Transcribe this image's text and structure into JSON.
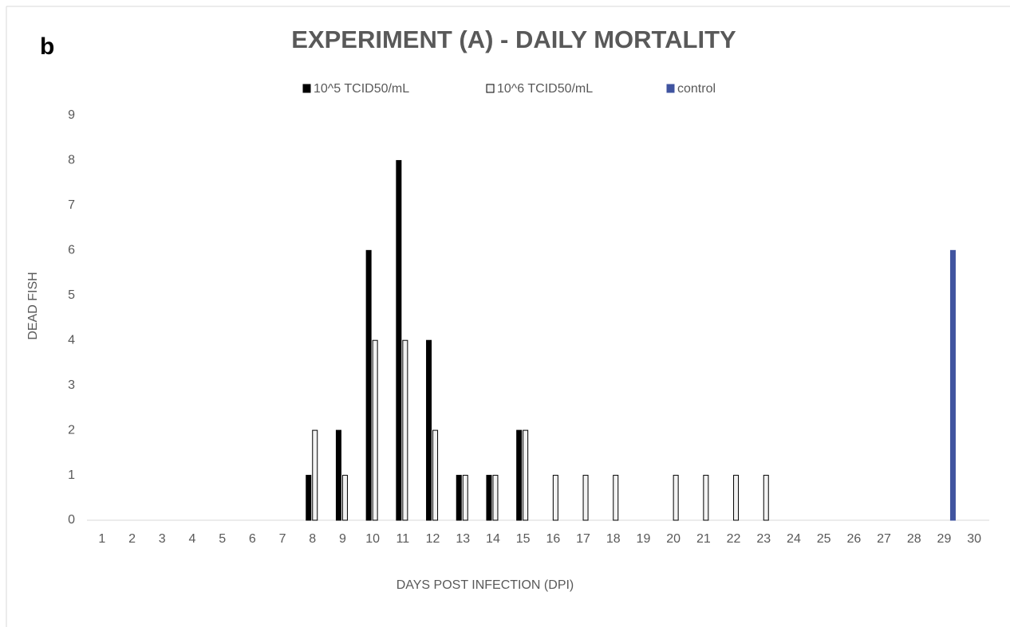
{
  "chart_data": {
    "type": "bar",
    "panel_label": "b",
    "title": "EXPERIMENT (A) - DAILY MORTALITY",
    "x_label": "DAYS POST INFECTION (DPI)",
    "y_label": "DEAD FISH",
    "categories": [
      "1",
      "2",
      "3",
      "4",
      "5",
      "6",
      "7",
      "8",
      "9",
      "10",
      "11",
      "12",
      "13",
      "14",
      "15",
      "16",
      "17",
      "18",
      "19",
      "20",
      "21",
      "22",
      "23",
      "24",
      "25",
      "26",
      "27",
      "28",
      "29",
      "30"
    ],
    "series": [
      {
        "name": "10^5 TCID50/mL",
        "color": "#000000",
        "edgecolor": "#000000",
        "values": [
          0,
          0,
          0,
          0,
          0,
          0,
          0,
          1,
          2,
          6,
          8,
          4,
          1,
          1,
          2,
          0,
          0,
          0,
          0,
          0,
          0,
          0,
          0,
          0,
          0,
          0,
          0,
          0,
          0,
          0
        ]
      },
      {
        "name": "10^6 TCID50/mL",
        "color": "#f2f2f2",
        "edgecolor": "#000000",
        "values": [
          0,
          0,
          0,
          0,
          0,
          0,
          0,
          2,
          1,
          4,
          4,
          2,
          1,
          1,
          2,
          1,
          1,
          1,
          0,
          1,
          1,
          1,
          1,
          0,
          0,
          0,
          0,
          0,
          0,
          0
        ]
      },
      {
        "name": "control",
        "color": "#4054a0",
        "edgecolor": "#4054a0",
        "values": [
          0,
          0,
          0,
          0,
          0,
          0,
          0,
          0,
          0,
          0,
          0,
          0,
          0,
          0,
          0,
          0,
          0,
          0,
          0,
          0,
          0,
          0,
          0,
          0,
          0,
          0,
          0,
          0,
          6,
          0
        ]
      }
    ],
    "ylim": [
      0,
      9
    ],
    "yticks": [
      0,
      1,
      2,
      3,
      4,
      5,
      6,
      7,
      8,
      9
    ],
    "grid": false,
    "legend": "top"
  }
}
